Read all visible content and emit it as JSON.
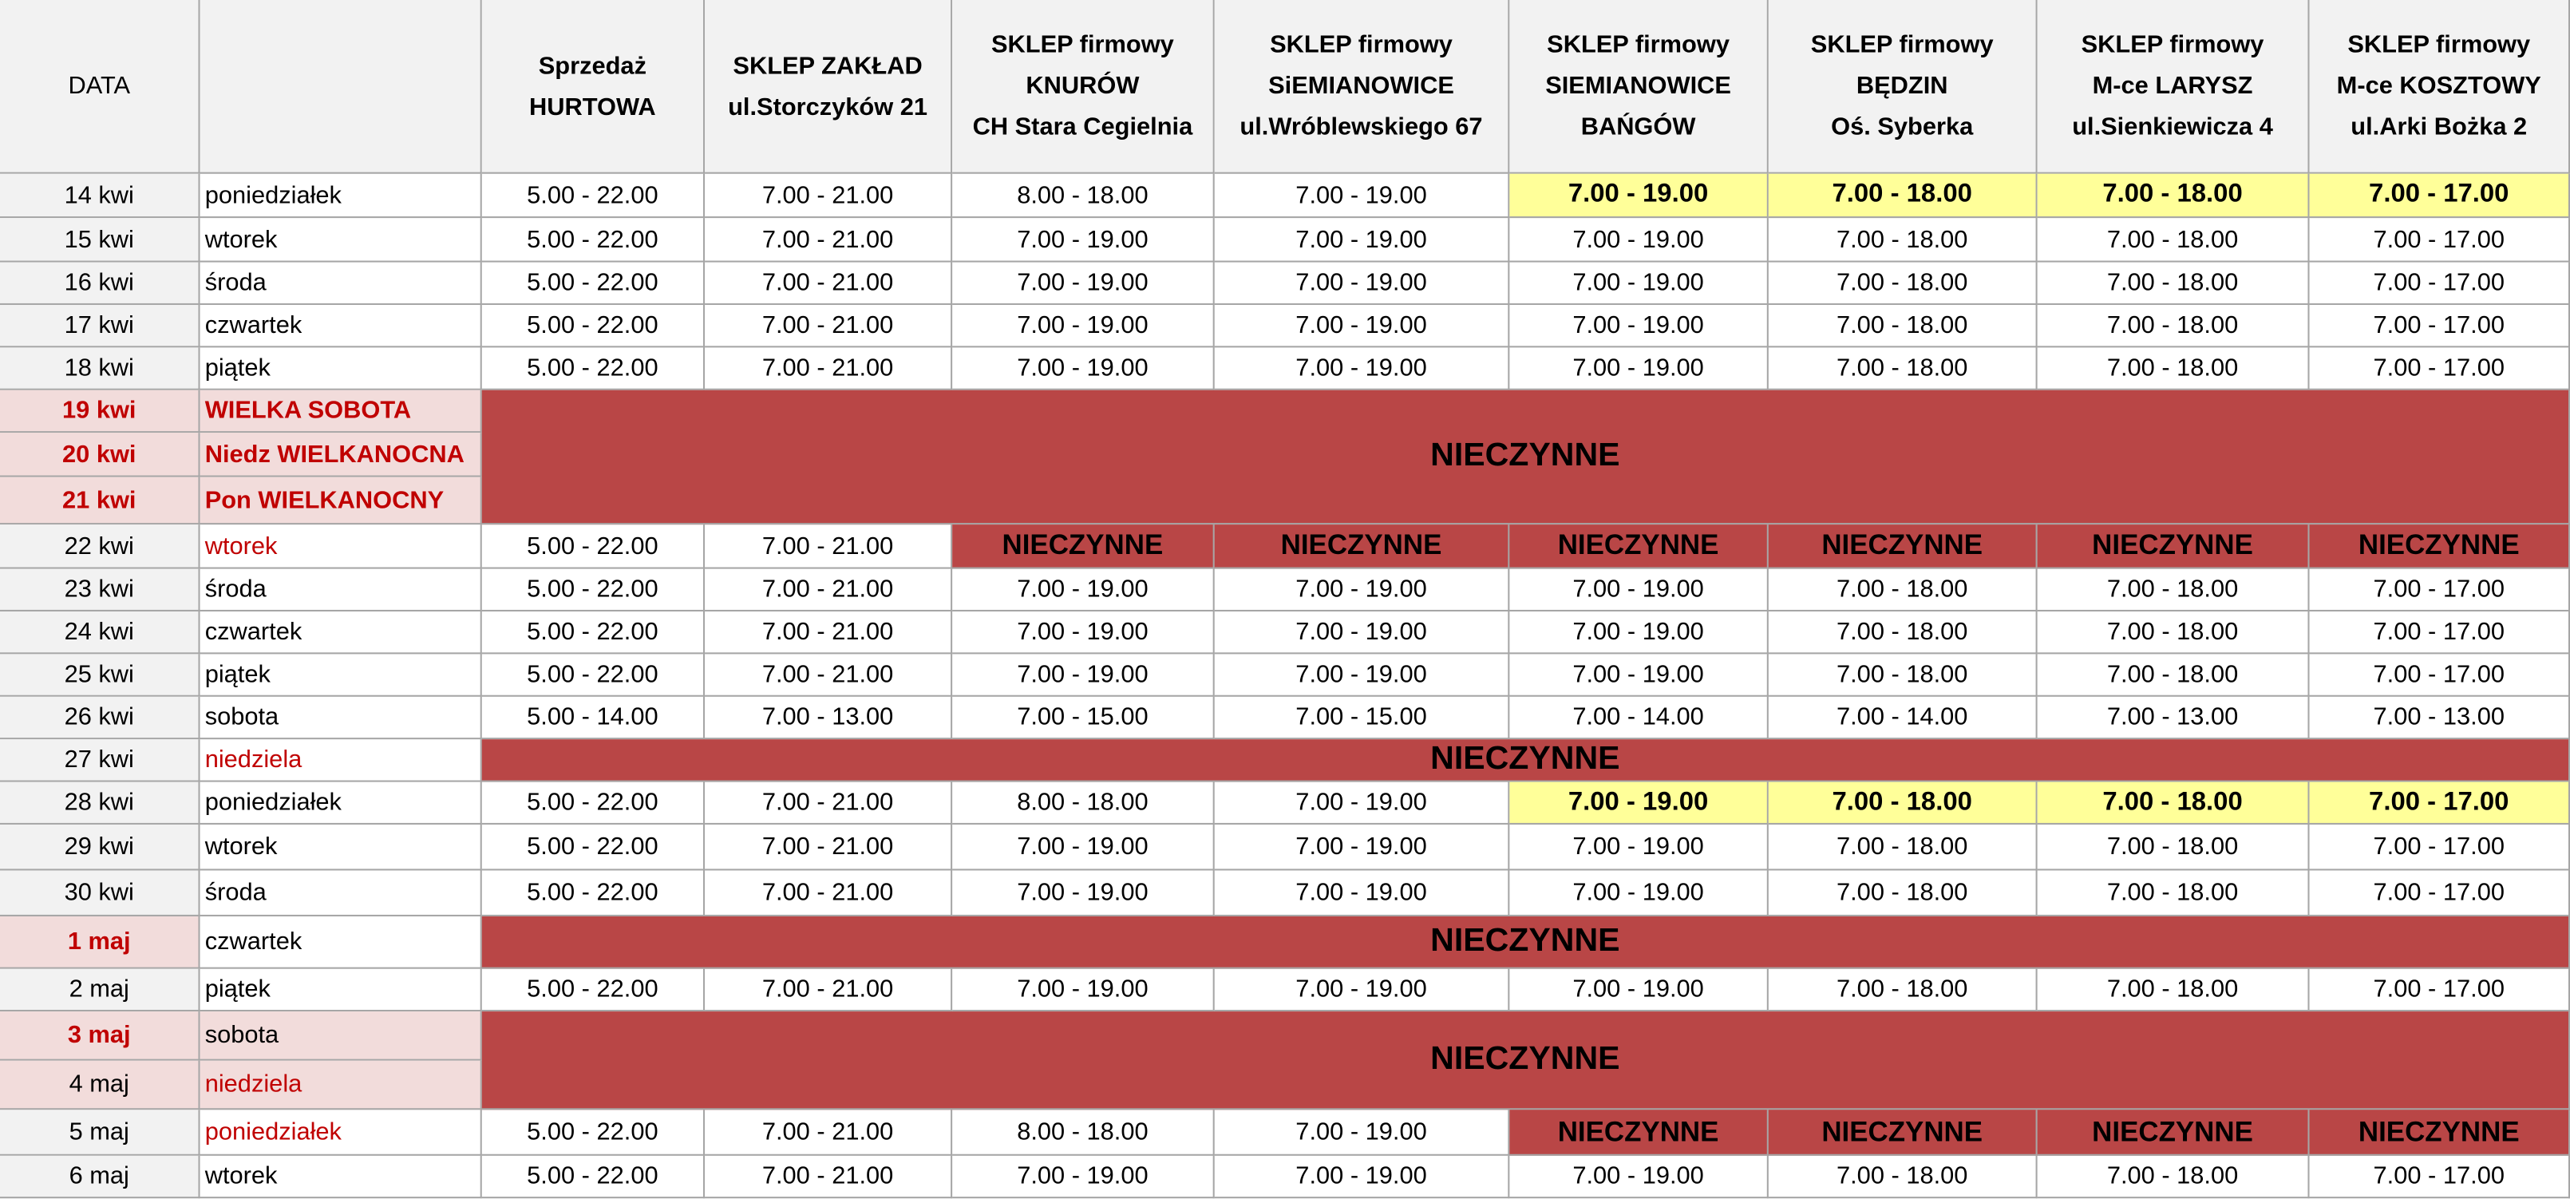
{
  "header": {
    "date": "DATA",
    "columns": [
      [
        "Sprzedaż",
        "HURTOWA"
      ],
      [
        "SKLEP ZAKŁAD",
        "ul.Storczyków 21"
      ],
      [
        "SKLEP firmowy",
        "KNURÓW",
        "CH Stara Cegielnia"
      ],
      [
        "SKLEP firmowy",
        "SiEMIANOWICE",
        "ul.Wróblewskiego 67"
      ],
      [
        "SKLEP firmowy",
        "SIEMIANOWICE",
        "BAŃGÓW"
      ],
      [
        "SKLEP firmowy",
        "BĘDZIN",
        "Oś. Syberka"
      ],
      [
        "SKLEP firmowy",
        "M-ce LARYSZ",
        "ul.Sienkiewicza 4"
      ],
      [
        "SKLEP firmowy",
        "M-ce KOSZTOWY",
        "ul.Arki Bożka 2"
      ]
    ]
  },
  "rows": [
    {
      "days": [
        {
          "date": "14 kwi",
          "day": "poniedziałek"
        }
      ],
      "hours": [
        "5.00 - 22.00",
        "7.00 - 21.00",
        "8.00 - 18.00",
        "7.00 - 19.00",
        {
          "text": "7.00 - 19.00",
          "fill": "#ffff99",
          "bold": true
        },
        {
          "text": "7.00 - 18.00",
          "fill": "#ffff99",
          "bold": true
        },
        {
          "text": "7.00 - 18.00",
          "fill": "#ffff99",
          "bold": true
        },
        {
          "text": "7.00 - 17.00",
          "fill": "#ffff99",
          "bold": true
        }
      ]
    },
    {
      "days": [
        {
          "date": "15 kwi",
          "day": "wtorek"
        }
      ],
      "hours": [
        "5.00 - 22.00",
        "7.00 - 21.00",
        "7.00 - 19.00",
        "7.00 - 19.00",
        "7.00 - 19.00",
        "7.00 - 18.00",
        "7.00 - 18.00",
        "7.00 - 17.00"
      ]
    },
    {
      "days": [
        {
          "date": "16 kwi",
          "day": "środa"
        }
      ],
      "hours": [
        "5.00 - 22.00",
        "7.00 - 21.00",
        "7.00 - 19.00",
        "7.00 - 19.00",
        "7.00 - 19.00",
        "7.00 - 18.00",
        "7.00 - 18.00",
        "7.00 - 17.00"
      ]
    },
    {
      "days": [
        {
          "date": "17 kwi",
          "day": "czwartek"
        }
      ],
      "hours": [
        "5.00 - 22.00",
        "7.00 - 21.00",
        "7.00 - 19.00",
        "7.00 - 19.00",
        "7.00 - 19.00",
        "7.00 - 18.00",
        "7.00 - 18.00",
        "7.00 - 17.00"
      ]
    },
    {
      "days": [
        {
          "date": "18 kwi",
          "day": "piątek"
        }
      ],
      "hours": [
        "5.00 - 22.00",
        "7.00 - 21.00",
        "7.00 - 19.00",
        "7.00 - 19.00",
        "7.00 - 19.00",
        "7.00 - 18.00",
        "7.00 - 18.00",
        "7.00 - 17.00"
      ]
    },
    {
      "days": [
        {
          "date": "19 kwi",
          "day": "WIELKA SOBOTA",
          "fill": "#f2dcdb",
          "date_color": "#c00000",
          "date_bold": true,
          "day_color": "#c00000",
          "day_bold": true
        },
        {
          "date": "20 kwi",
          "day": "Niedz WIELKANOCNA",
          "fill": "#f2dcdb",
          "date_color": "#c00000",
          "date_bold": true,
          "day_color": "#c00000",
          "day_bold": true
        },
        {
          "date": "21 kwi",
          "day": "Pon WIELKANOCNY",
          "fill": "#f2dcdb",
          "date_color": "#c00000",
          "date_bold": true,
          "day_color": "#c00000",
          "day_bold": true
        }
      ],
      "closed": {
        "text": "NIECZYNNE",
        "fill": "#b94646",
        "bold": true
      }
    },
    {
      "days": [
        {
          "date": "22 kwi",
          "day": "wtorek",
          "day_color": "#c00000"
        }
      ],
      "hours": [
        "5.00 - 22.00",
        "7.00 - 21.00",
        {
          "text": "NIECZYNNE",
          "fill": "#b94646",
          "bold": true
        },
        {
          "text": "NIECZYNNE",
          "fill": "#b94646",
          "bold": true
        },
        {
          "text": "NIECZYNNE",
          "fill": "#b94646",
          "bold": true
        },
        {
          "text": "NIECZYNNE",
          "fill": "#b94646",
          "bold": true
        },
        {
          "text": "NIECZYNNE",
          "fill": "#b94646",
          "bold": true
        },
        {
          "text": "NIECZYNNE",
          "fill": "#b94646",
          "bold": true
        }
      ]
    },
    {
      "days": [
        {
          "date": "23 kwi",
          "day": "środa"
        }
      ],
      "hours": [
        "5.00 - 22.00",
        "7.00 - 21.00",
        "7.00 - 19.00",
        "7.00 - 19.00",
        "7.00 - 19.00",
        "7.00 - 18.00",
        "7.00 - 18.00",
        "7.00 - 17.00"
      ]
    },
    {
      "days": [
        {
          "date": "24 kwi",
          "day": "czwartek"
        }
      ],
      "hours": [
        "5.00 - 22.00",
        "7.00 - 21.00",
        "7.00 - 19.00",
        "7.00 - 19.00",
        "7.00 - 19.00",
        "7.00 - 18.00",
        "7.00 - 18.00",
        "7.00 - 17.00"
      ]
    },
    {
      "days": [
        {
          "date": "25 kwi",
          "day": "piątek"
        }
      ],
      "hours": [
        "5.00 - 22.00",
        "7.00 - 21.00",
        "7.00 - 19.00",
        "7.00 - 19.00",
        "7.00 - 19.00",
        "7.00 - 18.00",
        "7.00 - 18.00",
        "7.00 - 17.00"
      ]
    },
    {
      "days": [
        {
          "date": "26 kwi",
          "day": "sobota"
        }
      ],
      "hours": [
        "5.00 - 14.00",
        "7.00 - 13.00",
        "7.00 - 15.00",
        "7.00 - 15.00",
        "7.00 - 14.00",
        "7.00 - 14.00",
        "7.00 - 13.00",
        "7.00 - 13.00"
      ]
    },
    {
      "days": [
        {
          "date": "27 kwi",
          "day": "niedziela",
          "day_color": "#c00000"
        }
      ],
      "closed": {
        "text": "NIECZYNNE",
        "fill": "#b94646",
        "bold": true
      }
    },
    {
      "days": [
        {
          "date": "28 kwi",
          "day": "poniedziałek"
        }
      ],
      "hours": [
        "5.00 - 22.00",
        "7.00 - 21.00",
        "8.00 - 18.00",
        "7.00 - 19.00",
        {
          "text": "7.00 - 19.00",
          "fill": "#ffff99",
          "bold": true
        },
        {
          "text": "7.00 - 18.00",
          "fill": "#ffff99",
          "bold": true
        },
        {
          "text": "7.00 - 18.00",
          "fill": "#ffff99",
          "bold": true
        },
        {
          "text": "7.00 - 17.00",
          "fill": "#ffff99",
          "bold": true
        }
      ]
    },
    {
      "days": [
        {
          "date": "29 kwi",
          "day": "wtorek"
        }
      ],
      "hours": [
        "5.00 - 22.00",
        "7.00 - 21.00",
        "7.00 - 19.00",
        "7.00 - 19.00",
        "7.00 - 19.00",
        "7.00 - 18.00",
        "7.00 - 18.00",
        "7.00 - 17.00"
      ]
    },
    {
      "days": [
        {
          "date": "30 kwi",
          "day": "środa"
        }
      ],
      "hours": [
        "5.00 - 22.00",
        "7.00 - 21.00",
        "7.00 - 19.00",
        "7.00 - 19.00",
        "7.00 - 19.00",
        "7.00 - 18.00",
        "7.00 - 18.00",
        "7.00 - 17.00"
      ]
    },
    {
      "days": [
        {
          "date": "1 maj",
          "day": "czwartek",
          "date_fill": "#f2dcdb",
          "date_color": "#c00000",
          "date_bold": true
        }
      ],
      "closed": {
        "text": "NIECZYNNE",
        "fill": "#b94646",
        "bold": true
      }
    },
    {
      "days": [
        {
          "date": "2 maj",
          "day": "piątek"
        }
      ],
      "hours": [
        "5.00 - 22.00",
        "7.00 - 21.00",
        "7.00 - 19.00",
        "7.00 - 19.00",
        "7.00 - 19.00",
        "7.00 - 18.00",
        "7.00 - 18.00",
        "7.00 - 17.00"
      ]
    },
    {
      "days": [
        {
          "date": "3 maj",
          "day": "sobota",
          "fill": "#f2dcdb",
          "date_color": "#c00000",
          "date_bold": true
        },
        {
          "date": "4 maj",
          "day": "niedziela",
          "fill": "#f2dcdb",
          "day_color": "#c00000"
        }
      ],
      "closed": {
        "text": "NIECZYNNE",
        "fill": "#b94646",
        "bold": true
      }
    },
    {
      "days": [
        {
          "date": "5 maj",
          "day": "poniedziałek",
          "day_color": "#c00000"
        }
      ],
      "hours": [
        "5.00 - 22.00",
        "7.00 - 21.00",
        "8.00 - 18.00",
        "7.00 - 19.00",
        {
          "text": "NIECZYNNE",
          "fill": "#b94646",
          "bold": true
        },
        {
          "text": "NIECZYNNE",
          "fill": "#b94646",
          "bold": true
        },
        {
          "text": "NIECZYNNE",
          "fill": "#b94646",
          "bold": true
        },
        {
          "text": "NIECZYNNE",
          "fill": "#b94646",
          "bold": true
        }
      ]
    },
    {
      "days": [
        {
          "date": "6 maj",
          "day": "wtorek"
        }
      ],
      "hours": [
        "5.00 - 22.00",
        "7.00 - 21.00",
        "7.00 - 19.00",
        "7.00 - 19.00",
        "7.00 - 19.00",
        "7.00 - 18.00",
        "7.00 - 18.00",
        "7.00 - 17.00"
      ]
    }
  ]
}
